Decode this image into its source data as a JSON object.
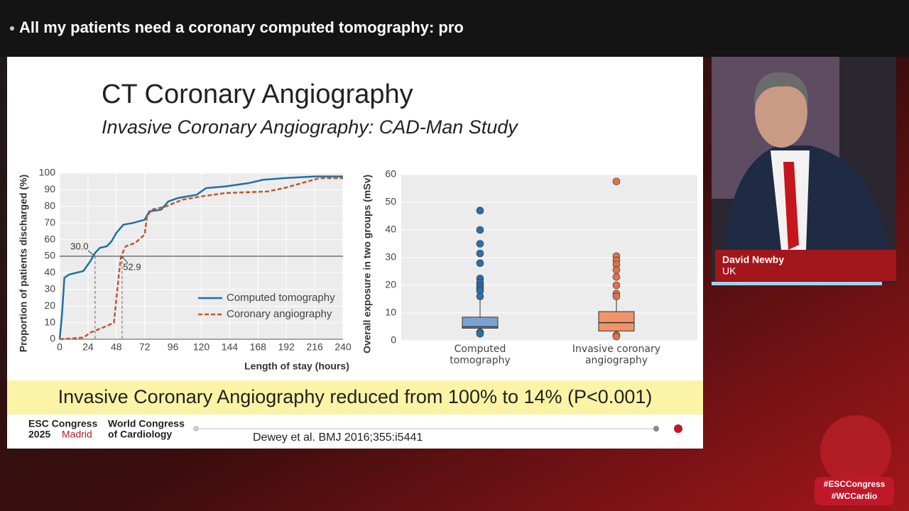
{
  "header": {
    "title": "All my patients need a coronary computed tomography: pro"
  },
  "slide": {
    "title": "CT Coronary Angiography",
    "subtitle": "Invasive Coronary Angiography: CAD-Man Study",
    "banner": "Invasive Coronary Angiography reduced from 100% to 14% (P<0.001)",
    "citation": "Dewey et al. BMJ 2016;355:i5441",
    "logo": {
      "line1": "ESC Congress",
      "year": "2025",
      "city": "Madrid",
      "wcc1": "World Congress",
      "wcc2": "of Cardiology"
    }
  },
  "speaker": {
    "name": "David Newby",
    "country": "UK"
  },
  "hashtags": [
    "#ESCCongress",
    "#WCCardio"
  ],
  "chart_data": [
    {
      "type": "line",
      "x_label": "Length of stay (hours)",
      "y_label": "Proportion of patients discharged (%)",
      "xlim": [
        0,
        240
      ],
      "ylim": [
        0,
        100
      ],
      "xticks": [
        0,
        24,
        48,
        72,
        96,
        120,
        144,
        168,
        192,
        216,
        240
      ],
      "yticks": [
        0,
        10,
        20,
        30,
        40,
        50,
        60,
        70,
        80,
        90,
        100
      ],
      "reference_line": 50,
      "annotations": [
        {
          "value": 30.0,
          "label": "30.0"
        },
        {
          "value": 52.9,
          "label": "52.9"
        }
      ],
      "series": [
        {
          "name": "Computed tomography",
          "color": "#1f6fa8",
          "x": [
            0,
            2,
            4,
            8,
            14,
            20,
            26,
            30,
            34,
            40,
            44,
            48,
            54,
            62,
            72,
            76,
            86,
            92,
            100,
            108,
            116,
            124,
            140,
            160,
            172,
            190,
            216,
            240
          ],
          "values": [
            0,
            15,
            37,
            39,
            40,
            41,
            47,
            52,
            55,
            56,
            59,
            64,
            69,
            70,
            72,
            77,
            78,
            83,
            85,
            86,
            87,
            91,
            92,
            94,
            96,
            97,
            98,
            98
          ]
        },
        {
          "name": "Coronary angiography",
          "color": "#c0572e",
          "x": [
            0,
            20,
            26,
            40,
            46,
            50,
            52,
            56,
            64,
            72,
            74,
            78,
            90,
            104,
            120,
            140,
            176,
            190,
            200,
            220,
            240
          ],
          "values": [
            0,
            1,
            4,
            8,
            10,
            38,
            50,
            56,
            58,
            63,
            74,
            78,
            80,
            84,
            86,
            88,
            89,
            91,
            93,
            97,
            97
          ]
        }
      ]
    },
    {
      "type": "box",
      "y_label": "Overall exposure in two groups (mSv)",
      "ylim": [
        0,
        60
      ],
      "yticks": [
        0,
        10,
        20,
        30,
        40,
        50,
        60
      ],
      "categories": [
        "Computed tomography",
        "Invasive coronary angiography"
      ],
      "series": [
        {
          "color": "#7ba3d1",
          "whisker_low": 2.5,
          "q1": 4.5,
          "median": 5,
          "q3": 8.5,
          "whisker_high": 15,
          "outliers": [
            47,
            40,
            35,
            31.5,
            28,
            22.5,
            21,
            20,
            19,
            18,
            16,
            3,
            2.5
          ]
        },
        {
          "color": "#f0956a",
          "whisker_low": 1.5,
          "q1": 3.5,
          "median": 6.5,
          "q3": 10.5,
          "whisker_high": 15.5,
          "outliers": [
            57.5,
            30.5,
            29,
            27.5,
            25.5,
            23,
            20,
            17,
            16,
            2,
            1.5
          ]
        }
      ]
    }
  ]
}
